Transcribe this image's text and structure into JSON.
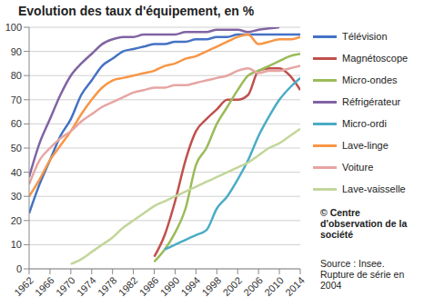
{
  "chart_data": {
    "type": "line",
    "title": "Evolution des taux d'équipement, en %",
    "x": [
      1962,
      1964,
      1966,
      1968,
      1970,
      1972,
      1974,
      1976,
      1978,
      1980,
      1982,
      1984,
      1986,
      1988,
      1990,
      1992,
      1994,
      1996,
      1998,
      2000,
      2002,
      2004,
      2006,
      2008,
      2010,
      2012,
      2014
    ],
    "xlim": [
      1962,
      2014
    ],
    "xticks": [
      1962,
      1966,
      1970,
      1974,
      1978,
      1982,
      1986,
      1990,
      1994,
      1998,
      2002,
      2006,
      2010,
      2014
    ],
    "ylim": [
      0,
      100
    ],
    "yticks": [
      0,
      10,
      20,
      30,
      40,
      50,
      60,
      70,
      80,
      90,
      100
    ],
    "grid": true,
    "legend": "right",
    "series": [
      {
        "name": "Télévision",
        "color": "#4472c4",
        "values": [
          23,
          35,
          45,
          55,
          62,
          72,
          78,
          84,
          87,
          90,
          91,
          92,
          93,
          93,
          94,
          94,
          95,
          95,
          96,
          96,
          97,
          97,
          97,
          97,
          97,
          97,
          97
        ]
      },
      {
        "name": "Magnétoscope",
        "color": "#c0504d",
        "values": [
          null,
          null,
          null,
          null,
          null,
          null,
          null,
          null,
          null,
          null,
          null,
          null,
          5,
          14,
          28,
          45,
          57,
          62,
          66,
          70,
          70,
          72,
          82,
          83,
          83,
          80,
          74
        ]
      },
      {
        "name": "Micro-ondes",
        "color": "#9bbb59",
        "values": [
          null,
          null,
          null,
          null,
          null,
          null,
          null,
          null,
          null,
          null,
          null,
          null,
          3,
          8,
          15,
          25,
          43,
          50,
          60,
          67,
          74,
          80,
          82,
          84,
          86,
          88,
          89
        ]
      },
      {
        "name": "Réfrigérateur",
        "color": "#8064a2",
        "values": [
          38,
          52,
          62,
          72,
          80,
          85,
          89,
          93,
          95,
          96,
          96,
          97,
          97,
          97,
          97,
          98,
          98,
          98,
          99,
          99,
          99,
          98,
          99,
          99.5,
          100,
          null,
          null
        ]
      },
      {
        "name": "Micro-ordi",
        "color": "#4bacc6",
        "values": [
          null,
          null,
          null,
          null,
          null,
          null,
          null,
          null,
          null,
          null,
          null,
          null,
          null,
          8,
          10,
          12,
          14,
          16,
          25,
          30,
          37,
          45,
          55,
          63,
          70,
          75,
          79
        ]
      },
      {
        "name": "Lave-linge",
        "color": "#f79646",
        "values": [
          30,
          37,
          45,
          51,
          57,
          64,
          70,
          75,
          78,
          79,
          80,
          81,
          82,
          84,
          85,
          87,
          88,
          90,
          92,
          94,
          96,
          97,
          93,
          94,
          95,
          95,
          96
        ]
      },
      {
        "name": "Voiture",
        "color": "#e6a5a3",
        "values": [
          35,
          45,
          50,
          54,
          57,
          61,
          64,
          67,
          69,
          71,
          73,
          74,
          75,
          75,
          76,
          76,
          77,
          78,
          79,
          80,
          82,
          83,
          81,
          82,
          82,
          83,
          84
        ]
      },
      {
        "name": "Lave-vaisselle",
        "color": "#c3d69b",
        "values": [
          null,
          null,
          null,
          null,
          2,
          4,
          7,
          10,
          13,
          17,
          20,
          23,
          26,
          28,
          30,
          32,
          34,
          36,
          38,
          40,
          42,
          44,
          47,
          50,
          52,
          55,
          58
        ]
      }
    ],
    "annotations": [
      "© Centre d'observation de la société",
      "Source : Insee. Rupture de série en 2004"
    ]
  }
}
